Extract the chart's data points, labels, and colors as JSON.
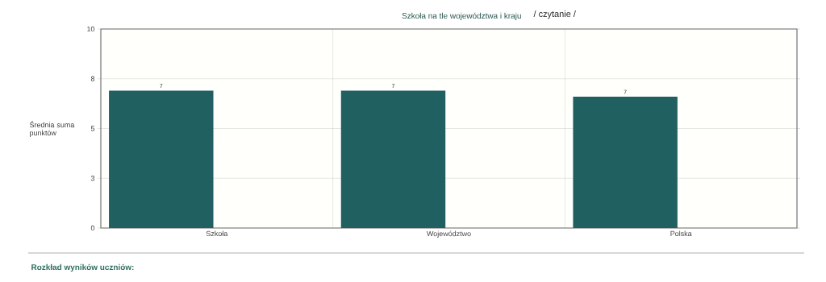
{
  "chart_data": {
    "type": "bar",
    "title": "Szkoła na tle województwa i kraju",
    "subtitle": "/ czytanie /",
    "ylabel": "Średnia suma punktów",
    "categories": [
      "Szkoła",
      "Województwo",
      "Polska"
    ],
    "values": [
      6.9,
      6.9,
      6.6
    ],
    "value_labels": [
      "7",
      "7",
      "7"
    ],
    "color": "#216060",
    "ylim": [
      0,
      10
    ],
    "yticks": [
      0,
      {
        "value": 2.5,
        "label": "3"
      },
      5,
      {
        "value": 7.5,
        "label": "8"
      },
      10
    ],
    "grid": true,
    "annotations": [
      "Rozkład wyników uczniów:"
    ]
  }
}
